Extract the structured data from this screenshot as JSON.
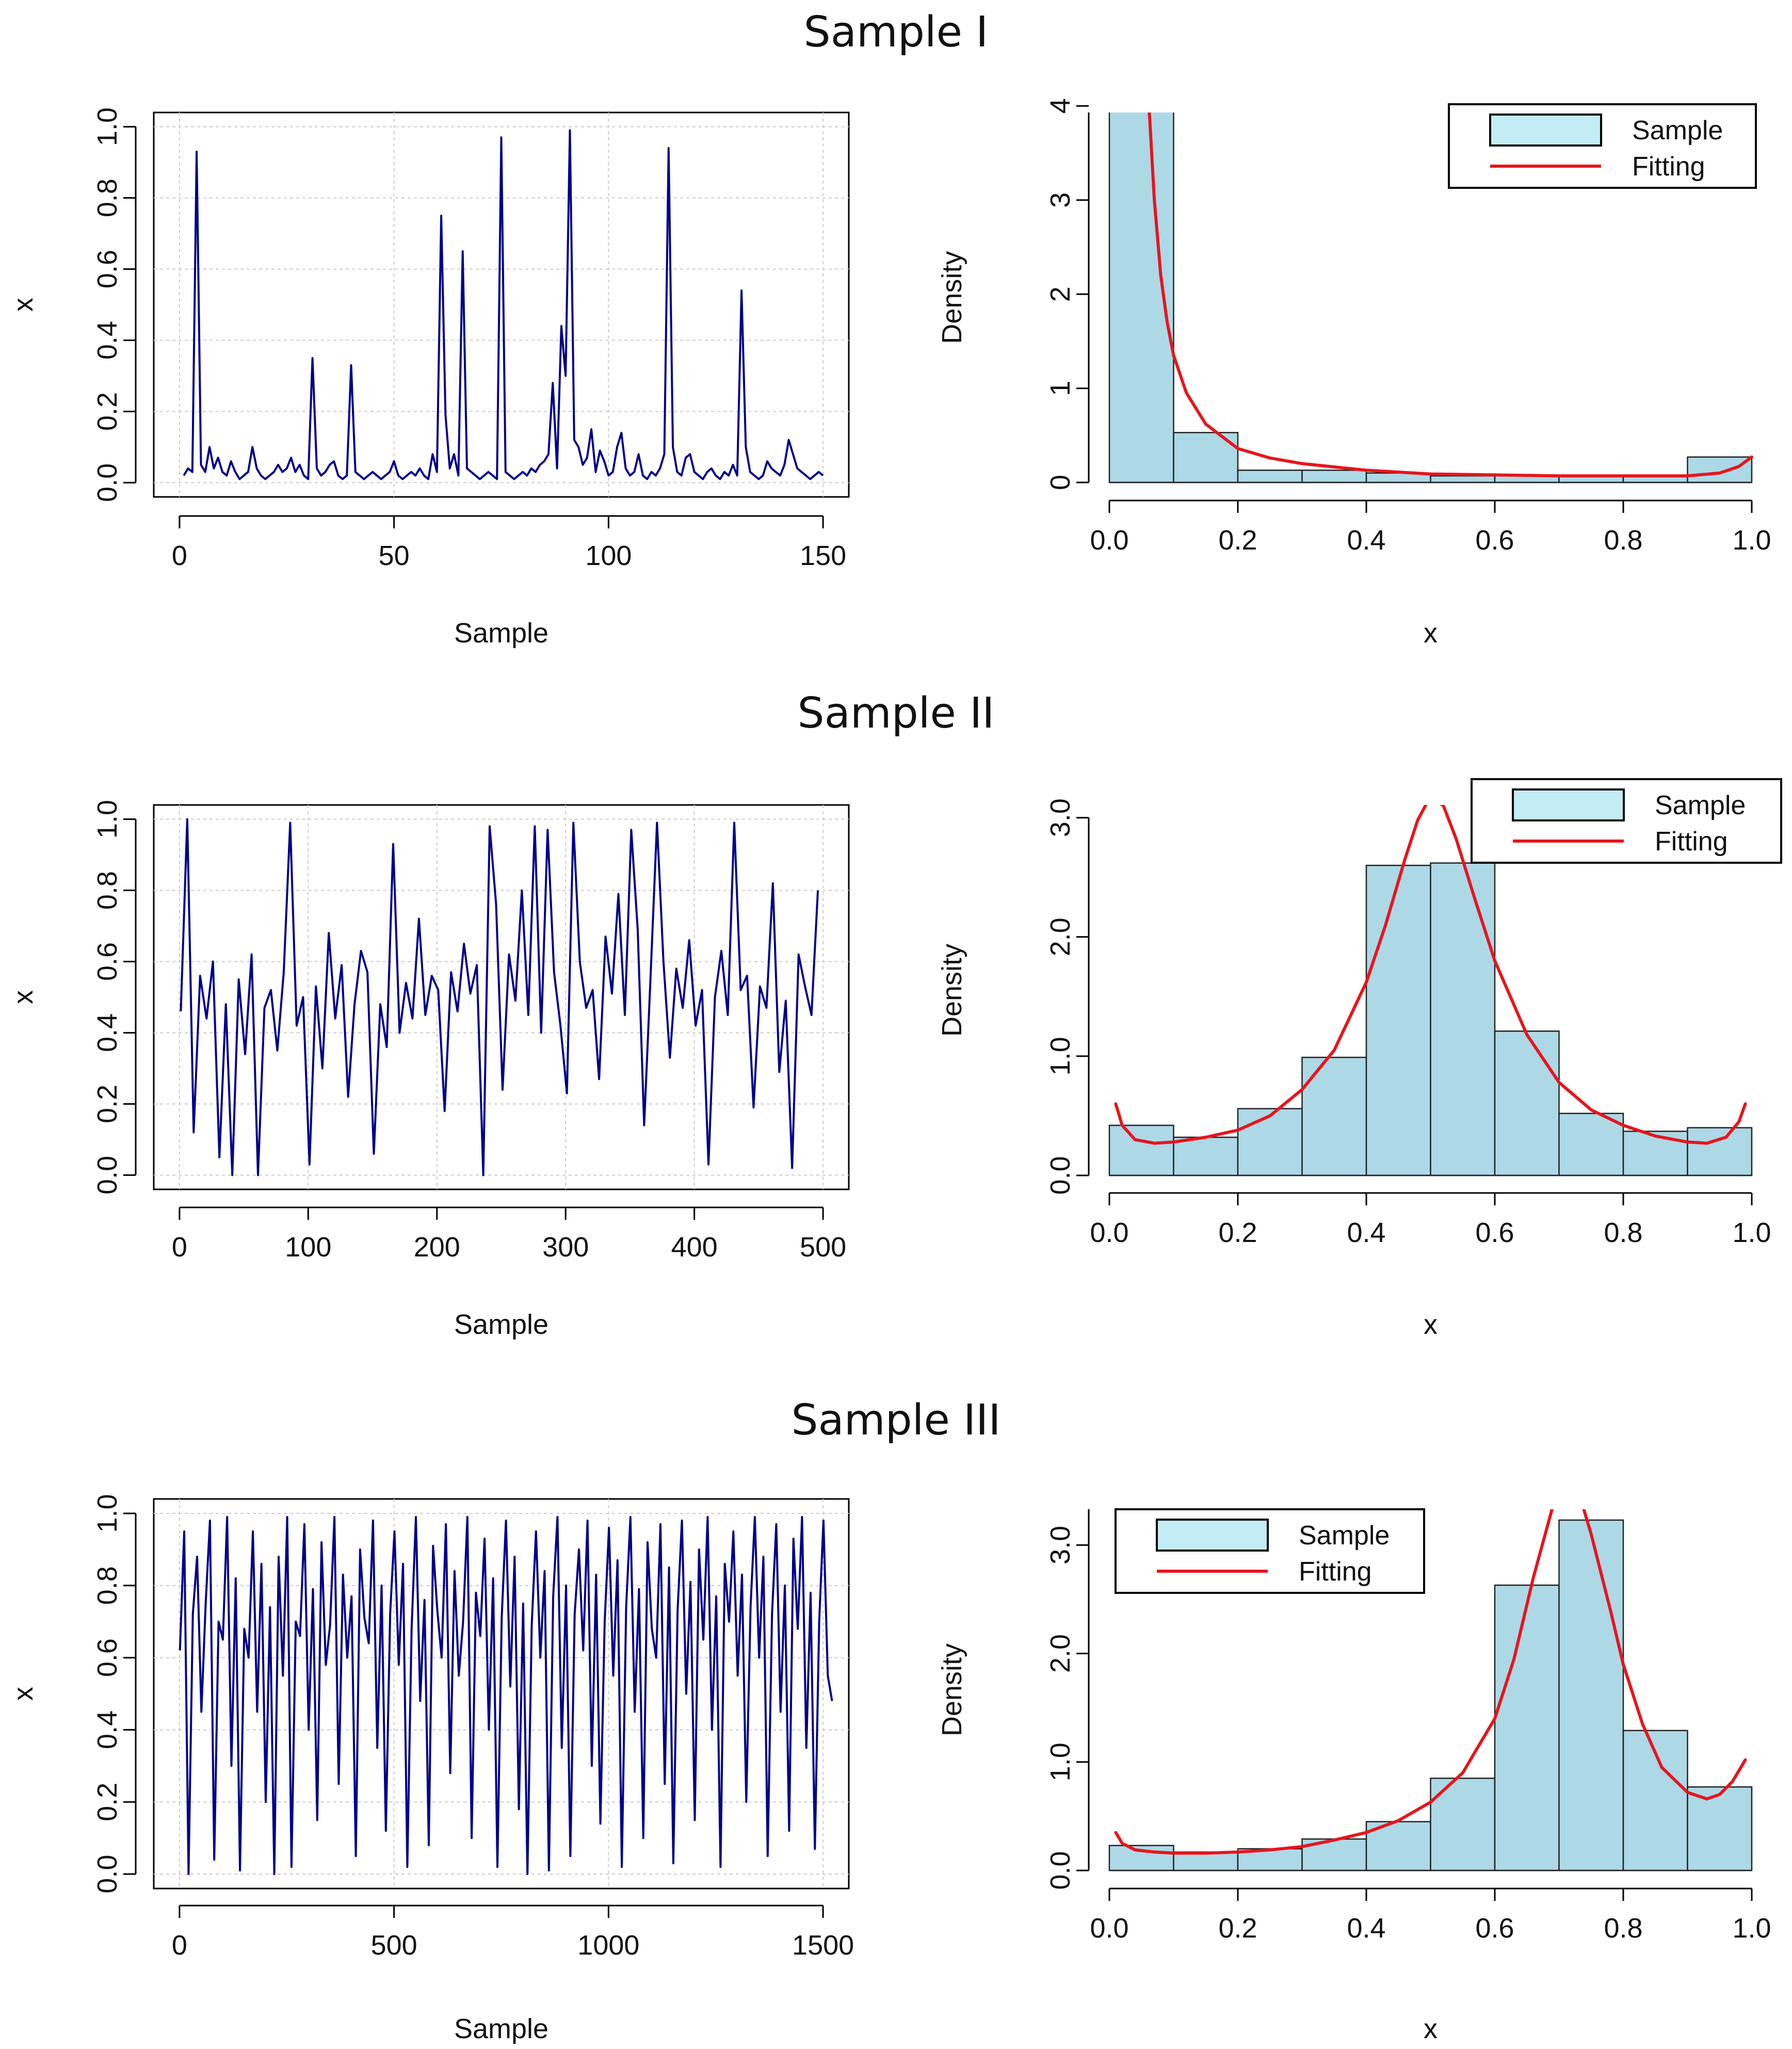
{
  "sections": [
    {
      "title": "Sample I"
    },
    {
      "title": "Sample II"
    },
    {
      "title": "Sample III"
    }
  ],
  "colors": {
    "series": "#00008b",
    "bar_fill": "#add8e6",
    "bar_stroke": "#222222",
    "fit_line": "#e8141c",
    "grid": "#cccccc",
    "legend_swatch": "#c4ecf5"
  },
  "chart_data": [
    {
      "id": "s1-series",
      "type": "line",
      "title": "",
      "xlabel": "Sample",
      "ylabel": "x",
      "xlim": [
        0,
        150
      ],
      "ylim": [
        0,
        1
      ],
      "xticks": [
        0,
        50,
        100,
        150
      ],
      "yticks": [
        0.0,
        0.2,
        0.4,
        0.6,
        0.8,
        1.0
      ],
      "grid": true,
      "series": [
        {
          "x_start": 1,
          "values": [
            0.02,
            0.04,
            0.03,
            0.93,
            0.05,
            0.03,
            0.1,
            0.04,
            0.07,
            0.03,
            0.02,
            0.06,
            0.03,
            0.01,
            0.02,
            0.03,
            0.1,
            0.04,
            0.02,
            0.01,
            0.02,
            0.03,
            0.05,
            0.03,
            0.04,
            0.07,
            0.03,
            0.05,
            0.02,
            0.01,
            0.35,
            0.04,
            0.02,
            0.03,
            0.05,
            0.06,
            0.02,
            0.01,
            0.02,
            0.33,
            0.03,
            0.02,
            0.01,
            0.02,
            0.03,
            0.02,
            0.01,
            0.02,
            0.03,
            0.06,
            0.02,
            0.01,
            0.02,
            0.03,
            0.02,
            0.04,
            0.02,
            0.01,
            0.08,
            0.03,
            0.75,
            0.19,
            0.04,
            0.08,
            0.02,
            0.65,
            0.04,
            0.03,
            0.02,
            0.01,
            0.02,
            0.03,
            0.02,
            0.01,
            0.97,
            0.03,
            0.02,
            0.01,
            0.02,
            0.03,
            0.02,
            0.04,
            0.03,
            0.05,
            0.06,
            0.08,
            0.28,
            0.04,
            0.44,
            0.3,
            0.99,
            0.12,
            0.1,
            0.05,
            0.07,
            0.15,
            0.03,
            0.09,
            0.06,
            0.02,
            0.03,
            0.1,
            0.14,
            0.04,
            0.02,
            0.03,
            0.08,
            0.02,
            0.01,
            0.03,
            0.02,
            0.04,
            0.08,
            0.94,
            0.1,
            0.03,
            0.02,
            0.07,
            0.08,
            0.03,
            0.02,
            0.01,
            0.03,
            0.04,
            0.02,
            0.01,
            0.03,
            0.02,
            0.05,
            0.02,
            0.54,
            0.1,
            0.03,
            0.02,
            0.01,
            0.02,
            0.06,
            0.04,
            0.03,
            0.02,
            0.05,
            0.12,
            0.08,
            0.04,
            0.03,
            0.02,
            0.01,
            0.02,
            0.03,
            0.02
          ]
        }
      ]
    },
    {
      "id": "s1-hist",
      "type": "bar",
      "title": "",
      "xlabel": "x",
      "ylabel": "Density",
      "xlim": [
        0,
        1
      ],
      "ylim": [
        0,
        4
      ],
      "xticks": [
        0.0,
        0.2,
        0.4,
        0.6,
        0.8,
        1.0
      ],
      "yticks": [
        0,
        1,
        2,
        3,
        4
      ],
      "bin_edges": [
        0,
        0.1,
        0.2,
        0.3,
        0.4,
        0.5,
        0.6,
        0.7,
        0.8,
        0.9,
        1.0
      ],
      "values": [
        4.6,
        0.53,
        0.13,
        0.13,
        0.1,
        0.07,
        0.07,
        0.07,
        0.07,
        0.27
      ],
      "fit": {
        "x": [
          0.06,
          0.07,
          0.08,
          0.09,
          0.1,
          0.12,
          0.15,
          0.2,
          0.25,
          0.3,
          0.4,
          0.5,
          0.6,
          0.7,
          0.8,
          0.9,
          0.95,
          0.98,
          1.0
        ],
        "y": [
          4.2,
          3.0,
          2.2,
          1.7,
          1.35,
          0.95,
          0.62,
          0.36,
          0.26,
          0.2,
          0.13,
          0.09,
          0.08,
          0.07,
          0.07,
          0.07,
          0.1,
          0.17,
          0.27
        ]
      },
      "legend": {
        "position": "top-right",
        "entries": [
          "Sample",
          "Fitting"
        ]
      }
    },
    {
      "id": "s2-series",
      "type": "line",
      "title": "",
      "xlabel": "Sample",
      "ylabel": "x",
      "xlim": [
        0,
        500
      ],
      "ylim": [
        0,
        1
      ],
      "xticks": [
        0,
        100,
        200,
        300,
        400,
        500
      ],
      "yticks": [
        0.0,
        0.2,
        0.4,
        0.6,
        0.8,
        1.0
      ],
      "grid": true,
      "series": [
        {
          "x_start": 1,
          "step": 5,
          "values": [
            0.46,
            1.0,
            0.12,
            0.56,
            0.44,
            0.6,
            0.05,
            0.48,
            0.0,
            0.55,
            0.34,
            0.62,
            0.0,
            0.47,
            0.52,
            0.35,
            0.57,
            0.99,
            0.42,
            0.5,
            0.03,
            0.53,
            0.3,
            0.68,
            0.44,
            0.59,
            0.22,
            0.48,
            0.63,
            0.57,
            0.06,
            0.48,
            0.36,
            0.93,
            0.4,
            0.54,
            0.44,
            0.72,
            0.45,
            0.56,
            0.52,
            0.18,
            0.57,
            0.46,
            0.65,
            0.51,
            0.59,
            0.0,
            0.98,
            0.76,
            0.24,
            0.62,
            0.49,
            0.8,
            0.45,
            0.98,
            0.4,
            0.97,
            0.57,
            0.42,
            0.23,
            0.99,
            0.6,
            0.47,
            0.52,
            0.27,
            0.67,
            0.51,
            0.79,
            0.45,
            0.97,
            0.69,
            0.14,
            0.56,
            0.99,
            0.6,
            0.33,
            0.58,
            0.47,
            0.66,
            0.42,
            0.52,
            0.03,
            0.5,
            0.63,
            0.45,
            0.99,
            0.52,
            0.56,
            0.19,
            0.53,
            0.47,
            0.82,
            0.29,
            0.49,
            0.02,
            0.62,
            0.53,
            0.45,
            0.8
          ]
        }
      ]
    },
    {
      "id": "s2-hist",
      "type": "bar",
      "title": "",
      "xlabel": "x",
      "ylabel": "Density",
      "xlim": [
        0,
        1
      ],
      "ylim": [
        0,
        3.0
      ],
      "xticks": [
        0.0,
        0.2,
        0.4,
        0.6,
        0.8,
        1.0
      ],
      "yticks": [
        0.0,
        1.0,
        2.0,
        3.0
      ],
      "bin_edges": [
        0,
        0.1,
        0.2,
        0.3,
        0.4,
        0.5,
        0.6,
        0.7,
        0.8,
        0.9,
        1.0
      ],
      "values": [
        0.42,
        0.32,
        0.56,
        0.99,
        2.6,
        2.62,
        1.21,
        0.52,
        0.37,
        0.4
      ],
      "fit": {
        "x": [
          0.01,
          0.02,
          0.04,
          0.07,
          0.1,
          0.15,
          0.2,
          0.25,
          0.3,
          0.35,
          0.4,
          0.43,
          0.46,
          0.48,
          0.5,
          0.52,
          0.54,
          0.57,
          0.6,
          0.65,
          0.7,
          0.75,
          0.8,
          0.85,
          0.9,
          0.93,
          0.96,
          0.98,
          0.99
        ],
        "y": [
          0.6,
          0.42,
          0.3,
          0.27,
          0.28,
          0.32,
          0.38,
          0.5,
          0.72,
          1.05,
          1.62,
          2.1,
          2.65,
          2.98,
          3.18,
          3.1,
          2.82,
          2.3,
          1.8,
          1.18,
          0.78,
          0.55,
          0.42,
          0.33,
          0.28,
          0.27,
          0.32,
          0.45,
          0.6
        ]
      },
      "legend": {
        "position": "top-right",
        "entries": [
          "Sample",
          "Fitting"
        ]
      }
    },
    {
      "id": "s3-series",
      "type": "line",
      "title": "",
      "xlabel": "Sample",
      "ylabel": "x",
      "xlim": [
        0,
        1500
      ],
      "ylim": [
        0,
        1
      ],
      "xticks": [
        0,
        500,
        1000,
        1500
      ],
      "yticks": [
        0.0,
        0.2,
        0.4,
        0.6,
        0.8,
        1.0
      ],
      "grid": true,
      "series": [
        {
          "x_start": 1,
          "step": 10,
          "values": [
            0.62,
            0.95,
            0.0,
            0.72,
            0.88,
            0.45,
            0.75,
            0.98,
            0.04,
            0.7,
            0.65,
            0.99,
            0.3,
            0.82,
            0.01,
            0.68,
            0.6,
            0.95,
            0.45,
            0.86,
            0.2,
            0.74,
            0.0,
            0.88,
            0.55,
            0.99,
            0.02,
            0.7,
            0.66,
            0.97,
            0.4,
            0.79,
            0.15,
            0.92,
            0.58,
            0.69,
            0.99,
            0.25,
            0.83,
            0.6,
            0.77,
            0.05,
            0.9,
            0.71,
            0.64,
            0.98,
            0.35,
            0.8,
            0.12,
            0.72,
            0.95,
            0.58,
            0.86,
            0.02,
            0.68,
            0.99,
            0.48,
            0.76,
            0.08,
            0.91,
            0.73,
            0.6,
            0.97,
            0.28,
            0.84,
            0.55,
            0.7,
            0.99,
            0.1,
            0.78,
            0.66,
            0.93,
            0.4,
            0.82,
            0.02,
            0.71,
            0.98,
            0.52,
            0.88,
            0.18,
            0.75,
            0.0,
            0.69,
            0.95,
            0.6,
            0.84,
            0.01,
            0.77,
            0.99,
            0.35,
            0.8,
            0.05,
            0.72,
            0.9,
            0.62,
            0.98,
            0.3,
            0.83,
            0.14,
            0.7,
            0.96,
            0.55,
            0.87,
            0.02,
            0.74,
            0.99,
            0.45,
            0.79,
            0.1,
            0.92,
            0.68,
            0.6,
            0.97,
            0.25,
            0.85,
            0.03,
            0.73,
            0.98,
            0.5,
            0.81,
            0.15,
            0.9,
            0.65,
            0.99,
            0.4,
            0.77,
            0.02,
            0.86,
            0.7,
            0.95,
            0.55,
            0.83,
            0.2,
            0.74,
            0.99,
            0.6,
            0.88,
            0.05,
            0.72,
            0.97,
            0.45,
            0.8,
            0.12,
            0.93,
            0.68,
            0.99,
            0.35,
            0.78,
            0.07,
            0.7,
            0.98,
            0.55,
            0.48
          ]
        }
      ]
    },
    {
      "id": "s3-hist",
      "type": "bar",
      "title": "",
      "xlabel": "x",
      "ylabel": "Density",
      "xlim": [
        0,
        1
      ],
      "ylim": [
        0,
        3.5
      ],
      "xticks": [
        0.0,
        0.2,
        0.4,
        0.6,
        0.8,
        1.0
      ],
      "yticks": [
        0.0,
        1.0,
        2.0,
        3.0
      ],
      "bin_edges": [
        0,
        0.1,
        0.2,
        0.3,
        0.4,
        0.5,
        0.6,
        0.7,
        0.8,
        0.9,
        1.0
      ],
      "values": [
        0.23,
        0.17,
        0.2,
        0.29,
        0.45,
        0.85,
        2.63,
        3.23,
        1.29,
        0.77
      ],
      "fit": {
        "x": [
          0.01,
          0.02,
          0.04,
          0.07,
          0.1,
          0.15,
          0.2,
          0.25,
          0.3,
          0.35,
          0.4,
          0.45,
          0.5,
          0.55,
          0.6,
          0.63,
          0.66,
          0.69,
          0.71,
          0.73,
          0.75,
          0.78,
          0.8,
          0.83,
          0.86,
          0.9,
          0.93,
          0.95,
          0.97,
          0.99
        ],
        "y": [
          0.35,
          0.25,
          0.19,
          0.17,
          0.16,
          0.16,
          0.17,
          0.19,
          0.22,
          0.28,
          0.35,
          0.46,
          0.63,
          0.9,
          1.4,
          1.95,
          2.7,
          3.35,
          3.6,
          3.5,
          3.1,
          2.4,
          1.9,
          1.35,
          0.95,
          0.72,
          0.66,
          0.7,
          0.82,
          1.02
        ]
      },
      "legend": {
        "position": "top-left",
        "entries": [
          "Sample",
          "Fitting"
        ]
      }
    }
  ]
}
